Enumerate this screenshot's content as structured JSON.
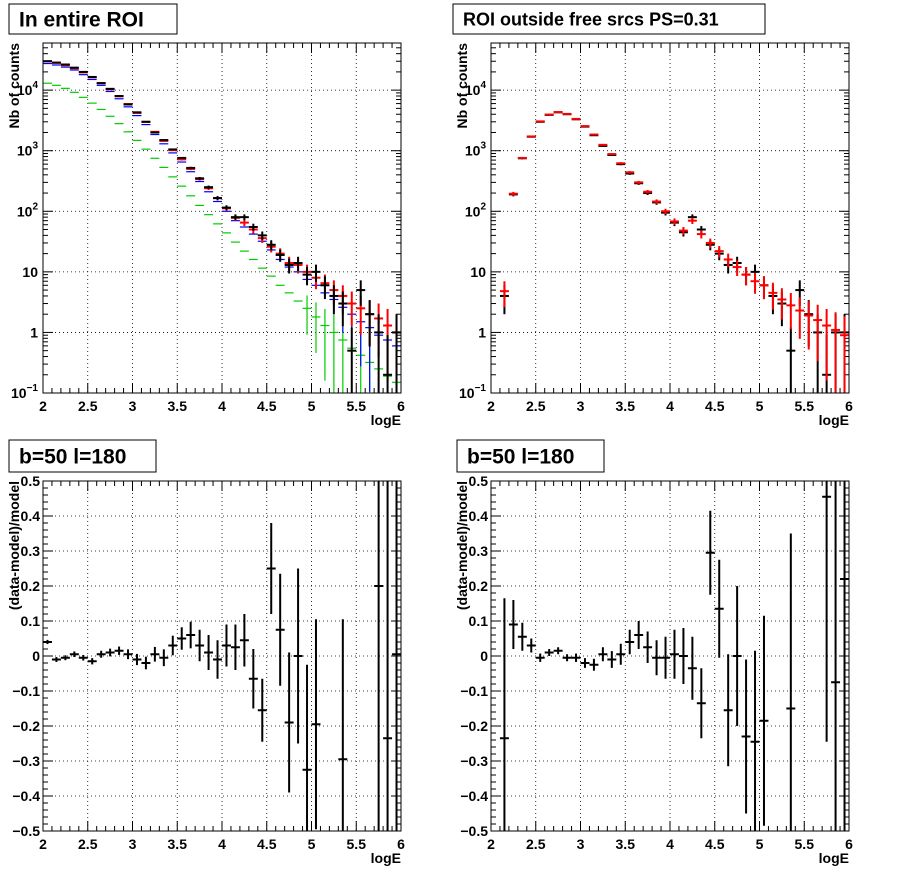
{
  "chart_data": [
    {
      "type": "scatter",
      "title": "In entire ROI",
      "xlabel": "logE",
      "ylabel": "Nb of counts",
      "xlim": [
        2,
        6
      ],
      "ylim": [
        0.1,
        60000
      ],
      "yscale": "log",
      "grid": true,
      "xticks": [
        "2",
        "2.5",
        "3",
        "3.5",
        "4",
        "4.5",
        "5",
        "5.5",
        "6"
      ],
      "yticks": [
        {
          "value": 0.1,
          "base": "10",
          "exp": "−1"
        },
        {
          "value": 1,
          "label": "1"
        },
        {
          "value": 10,
          "label": "10"
        },
        {
          "value": 100,
          "base": "10",
          "exp": "2"
        },
        {
          "value": 1000,
          "base": "10",
          "exp": "3"
        },
        {
          "value": 10000,
          "base": "10",
          "exp": "4"
        }
      ],
      "x": [
        2.05,
        2.15,
        2.25,
        2.35,
        2.45,
        2.55,
        2.65,
        2.75,
        2.85,
        2.95,
        3.05,
        3.15,
        3.25,
        3.35,
        3.45,
        3.55,
        3.65,
        3.75,
        3.85,
        3.95,
        4.05,
        4.15,
        4.25,
        4.35,
        4.45,
        4.55,
        4.65,
        4.75,
        4.85,
        4.95,
        5.05,
        5.15,
        5.25,
        5.35,
        5.45,
        5.55,
        5.65,
        5.75,
        5.85,
        5.95
      ],
      "series": [
        {
          "color": "#000000",
          "values": [
            30000,
            28500,
            26500,
            23500,
            20000,
            16500,
            13000,
            10500,
            8000,
            5800,
            4300,
            3000,
            2000,
            1500,
            1050,
            760,
            520,
            350,
            250,
            165,
            115,
            80,
            80,
            55,
            40,
            28,
            19,
            13,
            14,
            9,
            10,
            6,
            4,
            3,
            0.5,
            5,
            2,
            1,
            0.2,
            1
          ]
        },
        {
          "color": "#ff0000",
          "values": [
            30000,
            28200,
            25800,
            23000,
            19600,
            16300,
            13100,
            10300,
            7900,
            5900,
            4200,
            3000,
            2050,
            1450,
            1020,
            720,
            500,
            340,
            240,
            165,
            112,
            78,
            65,
            50,
            36,
            26,
            20,
            14,
            13,
            10,
            8,
            6.5,
            5,
            4,
            3,
            2.5,
            2,
            1.7,
            1.3,
            1
          ]
        },
        {
          "color": "#0000ff",
          "values": [
            27500,
            26000,
            24000,
            21500,
            18000,
            15000,
            12000,
            9500,
            7200,
            5300,
            3800,
            2700,
            1850,
            1300,
            920,
            650,
            450,
            310,
            210,
            145,
            100,
            70,
            55,
            42,
            32,
            23,
            16,
            12,
            10,
            7.5,
            6,
            4.5,
            3.5,
            2.6,
            2,
            1.5,
            1.2,
            0.9,
            0.75,
            0.6
          ]
        },
        {
          "color": "#00cc00",
          "values": [
            13000,
            12000,
            10700,
            9200,
            7600,
            6100,
            4800,
            3700,
            2800,
            2050,
            1480,
            1060,
            750,
            530,
            370,
            260,
            180,
            125,
            88,
            62,
            44,
            31,
            22,
            16,
            11.5,
            8.5,
            6,
            4.5,
            3.3,
            2.5,
            1.8,
            1.3,
            1,
            0.75,
            0.55,
            0.42,
            0.32,
            0.25,
            0.19,
            0.15
          ]
        }
      ]
    },
    {
      "type": "scatter",
      "title": "ROI outside free srcs PS=0.31",
      "xlabel": "logE",
      "ylabel": "Nb of counts",
      "xlim": [
        2,
        6
      ],
      "ylim": [
        0.1,
        60000
      ],
      "yscale": "log",
      "grid": true,
      "xticks": [
        "2",
        "2.5",
        "3",
        "3.5",
        "4",
        "4.5",
        "5",
        "5.5",
        "6"
      ],
      "yticks": [
        {
          "value": 0.1,
          "base": "10",
          "exp": "−1"
        },
        {
          "value": 1,
          "label": "1"
        },
        {
          "value": 10,
          "label": "10"
        },
        {
          "value": 100,
          "base": "10",
          "exp": "2"
        },
        {
          "value": 1000,
          "base": "10",
          "exp": "3"
        },
        {
          "value": 10000,
          "base": "10",
          "exp": "4"
        }
      ],
      "x": [
        2.15,
        2.25,
        2.35,
        2.45,
        2.55,
        2.65,
        2.75,
        2.85,
        2.95,
        3.05,
        3.15,
        3.25,
        3.35,
        3.45,
        3.55,
        3.65,
        3.75,
        3.85,
        3.95,
        4.05,
        4.15,
        4.25,
        4.35,
        4.45,
        4.55,
        4.65,
        4.75,
        4.85,
        4.95,
        5.05,
        5.15,
        5.25,
        5.35,
        5.45,
        5.55,
        5.65,
        5.75,
        5.85,
        5.95
      ],
      "series": [
        {
          "color": "#000000",
          "values": [
            4,
            190,
            750,
            1700,
            3000,
            3900,
            4300,
            4000,
            3300,
            2500,
            1800,
            1200,
            850,
            600,
            420,
            290,
            200,
            140,
            95,
            65,
            45,
            80,
            50,
            28,
            20,
            13,
            14,
            9,
            10,
            6,
            4,
            3,
            0.5,
            5,
            2,
            1,
            0.2,
            1,
            1
          ]
        },
        {
          "color": "#ff0000",
          "values": [
            4.8,
            195,
            760,
            1720,
            3050,
            3950,
            4350,
            4050,
            3350,
            2550,
            1850,
            1250,
            880,
            620,
            440,
            300,
            210,
            145,
            100,
            68,
            48,
            70,
            42,
            30,
            22,
            16,
            12,
            9,
            7,
            6,
            4.5,
            3.5,
            2.8,
            2.3,
            1.9,
            1.6,
            1.3,
            1.1,
            0.9
          ]
        }
      ]
    },
    {
      "type": "scatter",
      "title": "b=50 l=180",
      "xlabel": "logE",
      "ylabel": "(data-model)/model",
      "xlim": [
        2,
        6
      ],
      "ylim": [
        -0.5,
        0.5
      ],
      "grid": true,
      "xticks": [
        "2",
        "2.5",
        "3",
        "3.5",
        "4",
        "4.5",
        "5",
        "5.5",
        "6"
      ],
      "yticks": [
        "−0.5",
        "−0.4",
        "−0.3",
        "−0.2",
        "−0.1",
        "0",
        "0.1",
        "0.2",
        "0.3",
        "0.4",
        "0.5"
      ],
      "x": [
        2.05,
        2.15,
        2.25,
        2.35,
        2.45,
        2.55,
        2.65,
        2.75,
        2.85,
        2.95,
        3.05,
        3.15,
        3.25,
        3.35,
        3.45,
        3.55,
        3.65,
        3.75,
        3.85,
        3.95,
        4.05,
        4.15,
        4.25,
        4.35,
        4.45,
        4.55,
        4.65,
        4.75,
        4.85,
        4.95,
        5.05,
        5.35,
        5.75,
        5.85,
        5.95
      ],
      "values": [
        0.04,
        -0.01,
        -0.005,
        0.005,
        -0.005,
        -0.015,
        0.005,
        0.01,
        0.015,
        0.005,
        -0.01,
        -0.02,
        0.005,
        -0.005,
        0.03,
        0.05,
        0.06,
        0.03,
        0.01,
        -0.01,
        0.03,
        0.025,
        0.045,
        -0.065,
        -0.155,
        0.25,
        0.075,
        -0.19,
        0.0,
        -0.325,
        -0.195,
        -0.295,
        0.2,
        -0.235,
        0.005
      ],
      "errors": [
        0.006,
        0.007,
        0.007,
        0.008,
        0.008,
        0.009,
        0.01,
        0.011,
        0.012,
        0.014,
        0.016,
        0.018,
        0.021,
        0.024,
        0.028,
        0.032,
        0.038,
        0.045,
        0.05,
        0.055,
        0.06,
        0.065,
        0.075,
        0.085,
        0.09,
        0.13,
        0.16,
        0.2,
        0.25,
        0.3,
        0.3,
        0.4,
        0.7,
        0.8,
        0.8
      ]
    },
    {
      "type": "scatter",
      "title": "b=50 l=180",
      "xlabel": "logE",
      "ylabel": "(data-model)/model",
      "xlim": [
        2,
        6
      ],
      "ylim": [
        -0.5,
        0.5
      ],
      "grid": true,
      "xticks": [
        "2",
        "2.5",
        "3",
        "3.5",
        "4",
        "4.5",
        "5",
        "5.5",
        "6"
      ],
      "yticks": [
        "−0.5",
        "−0.4",
        "−0.3",
        "−0.2",
        "−0.1",
        "0",
        "0.1",
        "0.2",
        "0.3",
        "0.4",
        "0.5"
      ],
      "x": [
        2.15,
        2.25,
        2.35,
        2.45,
        2.55,
        2.65,
        2.75,
        2.85,
        2.95,
        3.05,
        3.15,
        3.25,
        3.35,
        3.45,
        3.55,
        3.65,
        3.75,
        3.85,
        3.95,
        4.05,
        4.15,
        4.25,
        4.35,
        4.45,
        4.55,
        4.65,
        4.75,
        4.85,
        4.95,
        5.05,
        5.35,
        5.75,
        5.85,
        5.95
      ],
      "values": [
        -0.235,
        0.09,
        0.055,
        0.03,
        -0.005,
        0.01,
        0.015,
        -0.005,
        -0.005,
        -0.02,
        -0.025,
        0.005,
        -0.01,
        0.005,
        0.04,
        0.06,
        0.025,
        -0.005,
        -0.005,
        0.005,
        0.0,
        -0.035,
        -0.135,
        0.295,
        0.135,
        -0.155,
        0.0,
        -0.23,
        -0.245,
        -0.185,
        -0.15,
        0.455,
        -0.075,
        0.22
      ],
      "errors": [
        0.4,
        0.07,
        0.04,
        0.02,
        0.012,
        0.01,
        0.01,
        0.01,
        0.012,
        0.014,
        0.017,
        0.02,
        0.024,
        0.03,
        0.035,
        0.04,
        0.045,
        0.05,
        0.06,
        0.07,
        0.08,
        0.09,
        0.1,
        0.12,
        0.14,
        0.16,
        0.2,
        0.22,
        0.26,
        0.3,
        0.5,
        0.7,
        0.8,
        0.8
      ]
    }
  ]
}
